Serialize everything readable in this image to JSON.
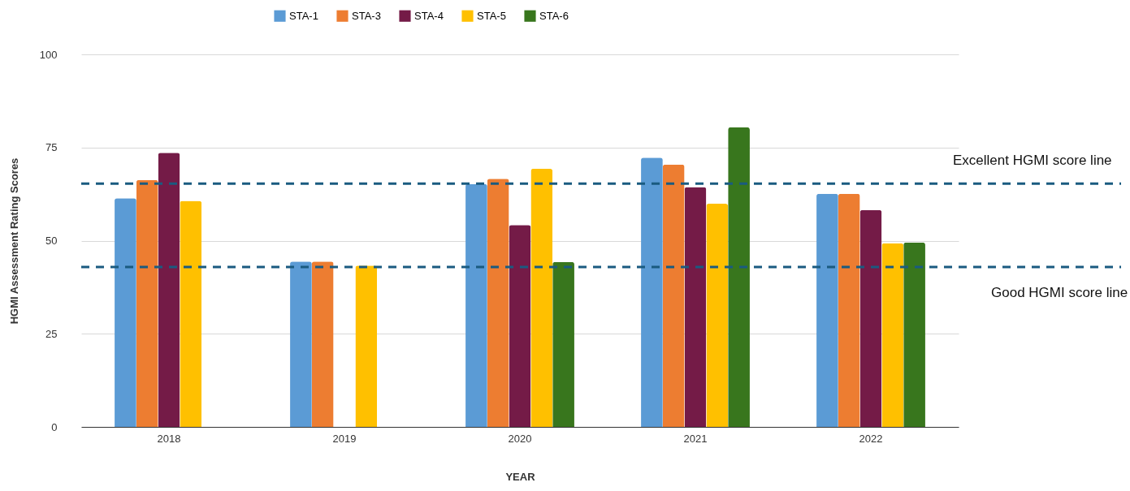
{
  "chart_data": {
    "type": "bar",
    "xlabel": "YEAR",
    "ylabel": "HGMI Assessment Rating Scores",
    "categories": [
      "2018",
      "2019",
      "2020",
      "2021",
      "2022"
    ],
    "series": [
      {
        "name": "STA-1",
        "color": "#5b9bd5",
        "values": [
          61.4,
          44.4,
          65.2,
          72.3,
          62.6
        ]
      },
      {
        "name": "STA-3",
        "color": "#ed7d31",
        "values": [
          66.3,
          44.4,
          66.6,
          70.4,
          62.6
        ]
      },
      {
        "name": "STA-4",
        "color": "#741b47",
        "values": [
          73.6,
          null,
          54.2,
          64.4,
          58.2
        ]
      },
      {
        "name": "STA-5",
        "color": "#ffc000",
        "values": [
          60.7,
          43.3,
          69.3,
          59.9,
          49.3
        ]
      },
      {
        "name": "STA-6",
        "color": "#38761d",
        "values": [
          null,
          null,
          44.3,
          80.4,
          49.5
        ]
      }
    ],
    "ylim": [
      0,
      100
    ],
    "yticks": [
      0,
      25,
      50,
      75,
      100
    ],
    "grid": "y",
    "legend": "top",
    "ref_lines": [
      {
        "axis": "y",
        "value": 65.3,
        "label": "Excellent HGMI score line",
        "color": "#1a5b80",
        "line_style": "dashed"
      },
      {
        "axis": "y",
        "value": 42.9,
        "label": "Good HGMI score line",
        "color": "#1a5b80",
        "line_style": "dashed"
      }
    ]
  }
}
